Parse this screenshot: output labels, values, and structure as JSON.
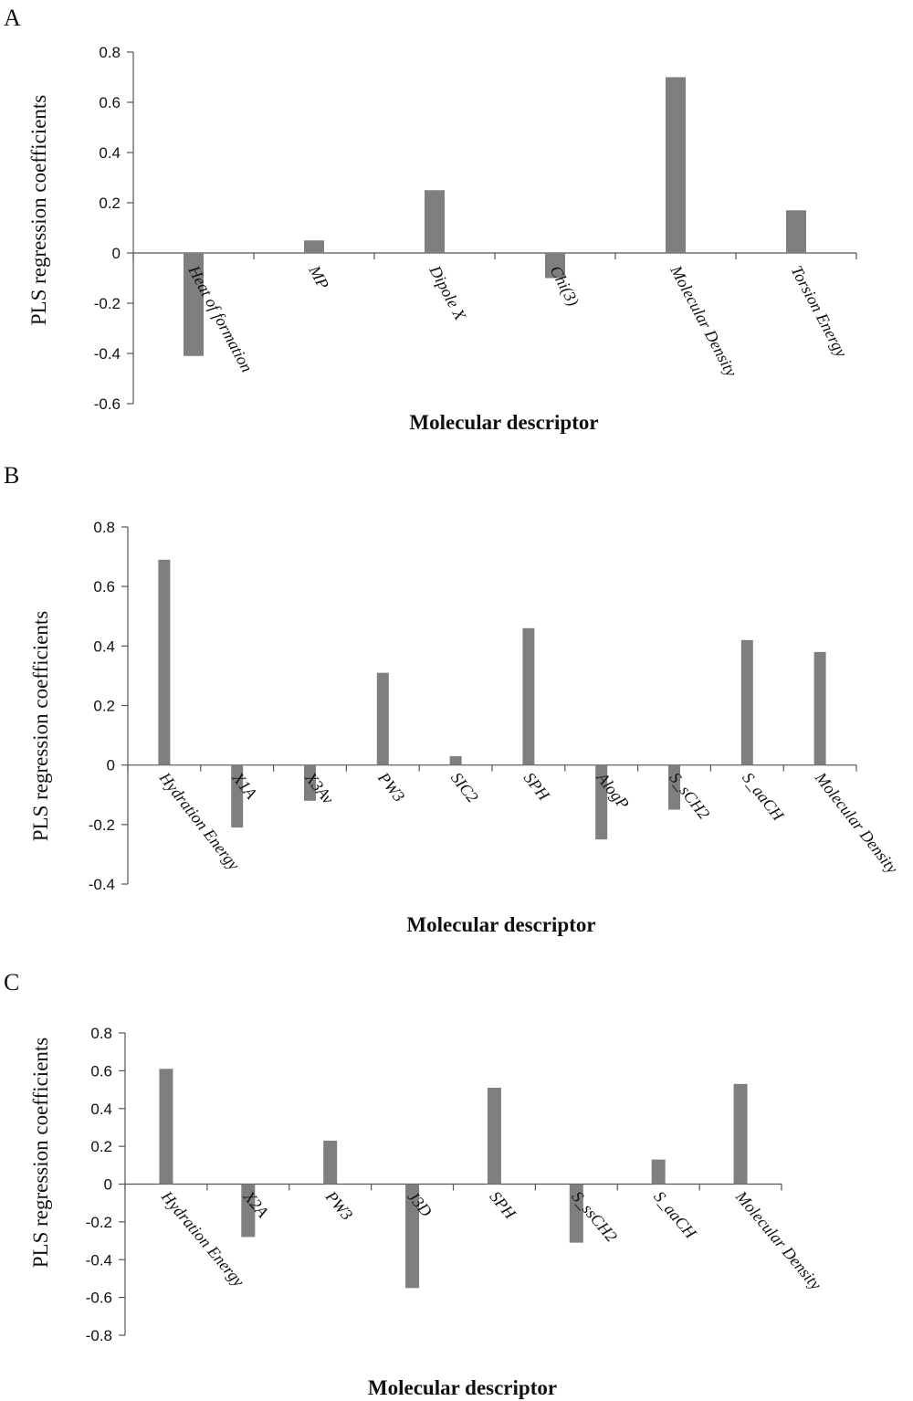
{
  "chart_data": [
    {
      "type": "bar",
      "panel_label": "A",
      "categories": [
        "Heat of formation",
        "MP",
        "Dipole X",
        "Chi(3)",
        "Molecular Density",
        "Torsion Energy"
      ],
      "values": [
        -0.41,
        0.05,
        0.25,
        -0.1,
        0.7,
        0.17
      ],
      "ylim": [
        -0.6,
        0.8
      ],
      "yticks": [
        "0.8",
        "0.6",
        "0.4",
        "0.2",
        "0",
        "-0.2",
        "-0.4",
        "-0.6"
      ],
      "xlabel": "Molecular descriptor",
      "ylabel": "PLS regression coefficients",
      "grid": false,
      "legend": "none"
    },
    {
      "type": "bar",
      "panel_label": "B",
      "categories": [
        "Hydration Energy",
        "X1A",
        "X3Av",
        "PW3",
        "SIC2",
        "SPH",
        "AlogP",
        "S_sCH2",
        "S_aaCH",
        "Molecular Density"
      ],
      "values": [
        0.69,
        -0.21,
        -0.12,
        0.31,
        0.03,
        0.46,
        -0.25,
        -0.15,
        0.42,
        0.38
      ],
      "ylim": [
        -0.4,
        0.8
      ],
      "yticks": [
        "0.8",
        "0.6",
        "0.4",
        "0.2",
        "0",
        "-0.2",
        "-0.4"
      ],
      "xlabel": "Molecular descriptor",
      "ylabel": "PLS regression coefficients",
      "grid": false,
      "legend": "none"
    },
    {
      "type": "bar",
      "panel_label": "C",
      "categories": [
        "Hydration Energy",
        "X2A",
        "PW3",
        "J3D",
        "SPH",
        "S_ssCH2",
        "S_aaCH",
        "Molecular Density"
      ],
      "values": [
        0.61,
        -0.28,
        0.23,
        -0.55,
        0.51,
        -0.31,
        0.13,
        0.53
      ],
      "ylim": [
        -0.8,
        0.8
      ],
      "yticks": [
        "0.8",
        "0.6",
        "0.4",
        "0.2",
        "0",
        "-0.2",
        "-0.4",
        "-0.6",
        "-0.8"
      ],
      "xlabel": "Molecular descriptor",
      "ylabel": "PLS regression coefficients",
      "grid": false,
      "legend": "none"
    }
  ],
  "colors": {
    "bar": "#7f7f7f",
    "axis": "#555555",
    "text": "#111111"
  }
}
